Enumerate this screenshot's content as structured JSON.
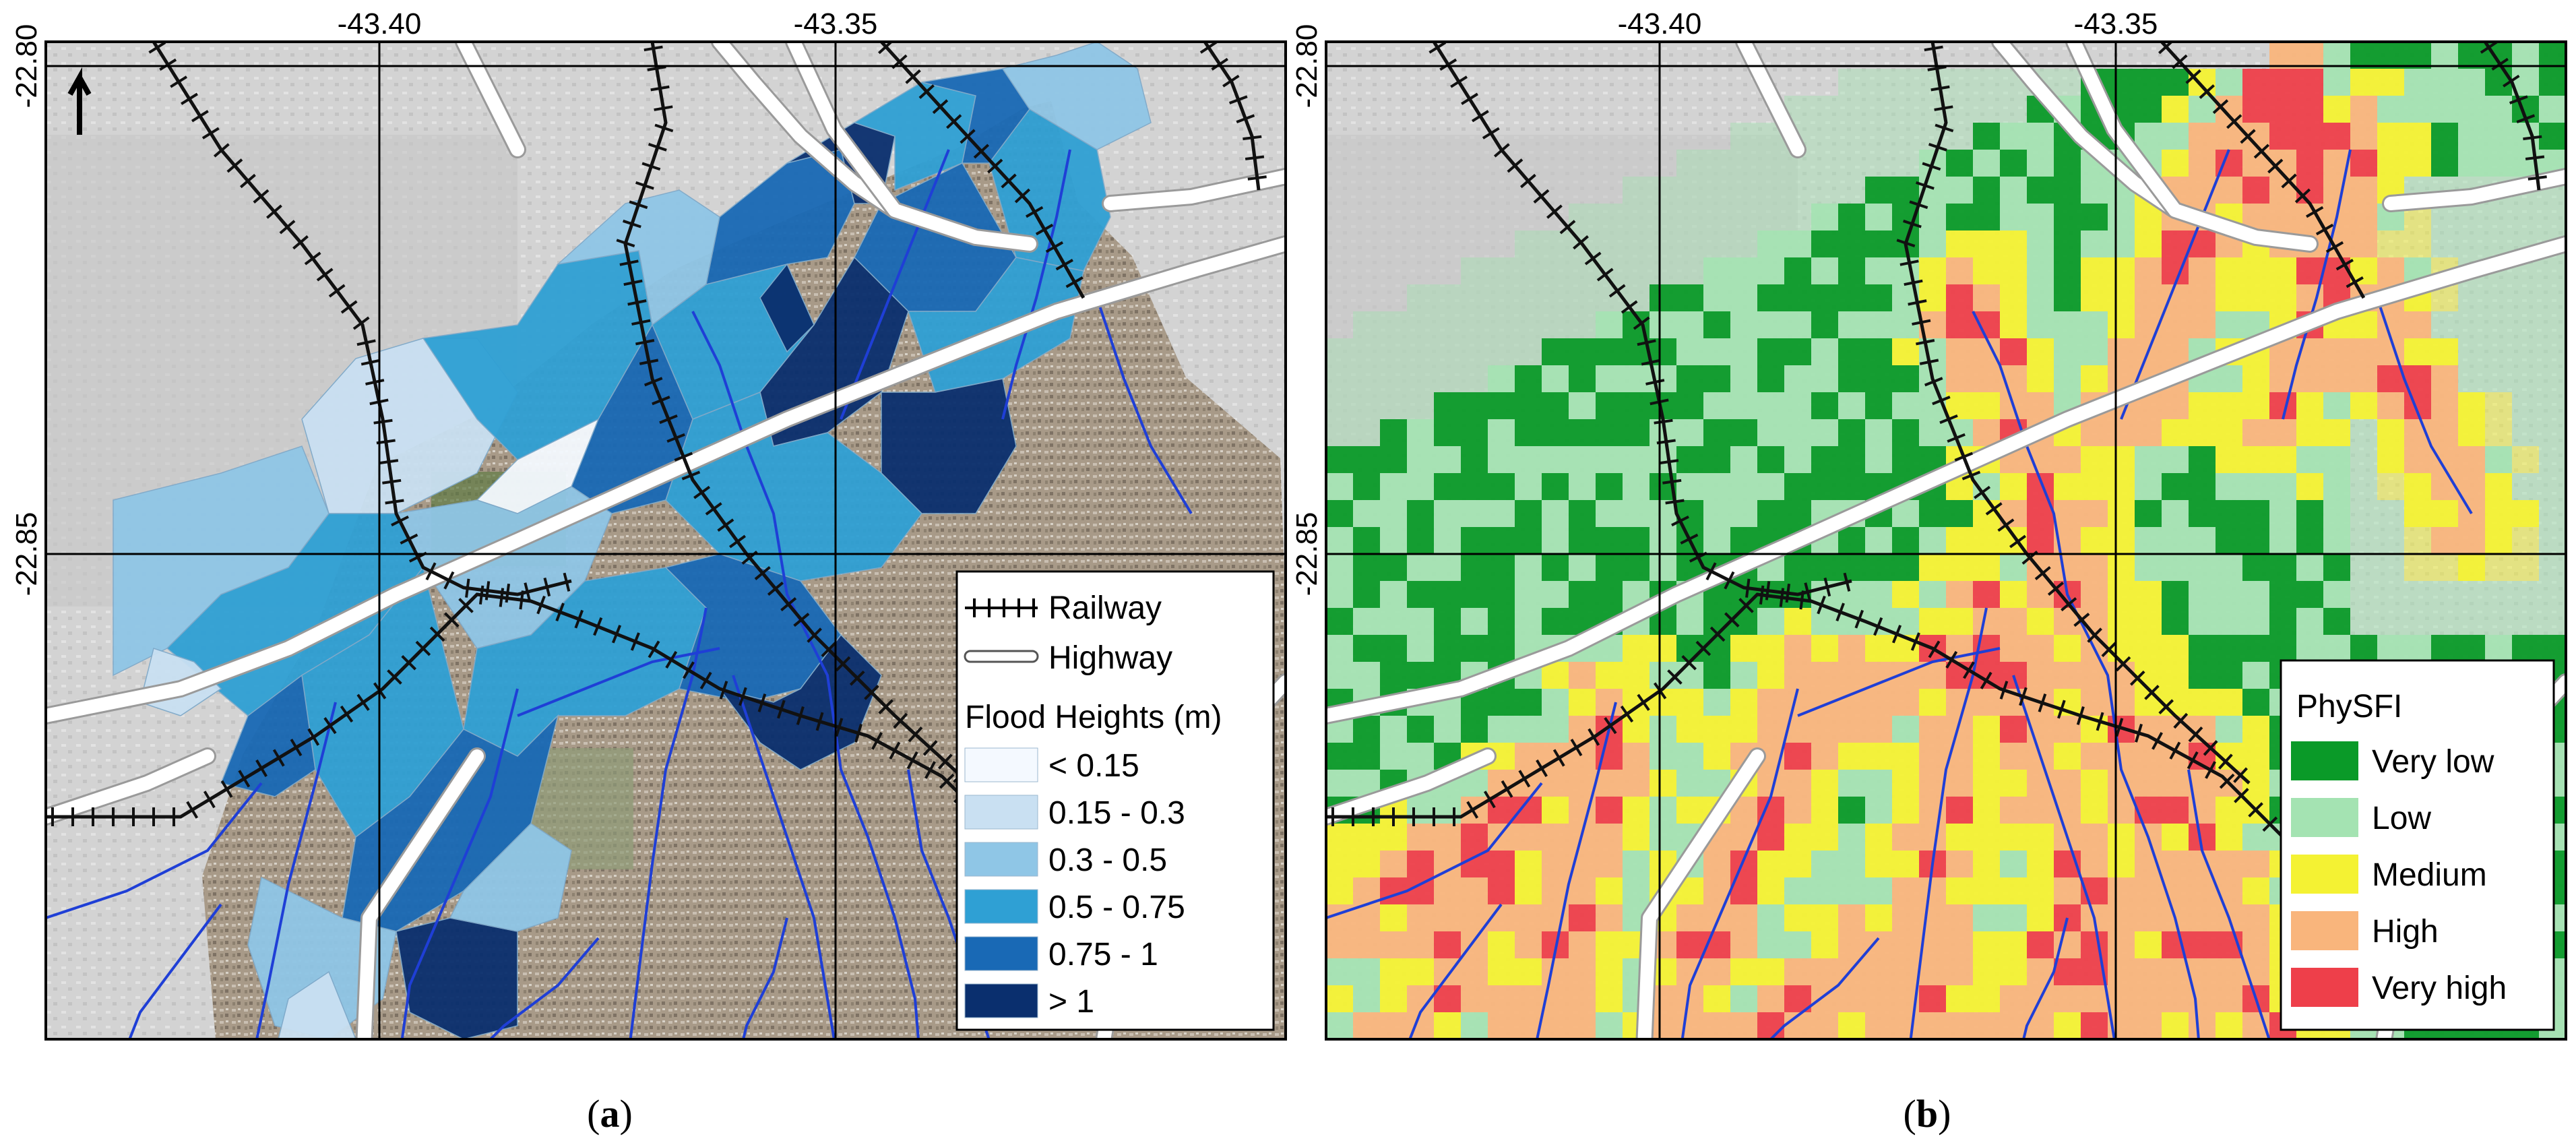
{
  "panels": [
    {
      "id": "a",
      "caption_letter": "a",
      "lon_labels": [
        "-43.40",
        "-43.35"
      ],
      "lat_labels": [
        "-22.80",
        "-22.85"
      ],
      "legend": {
        "features": [
          {
            "label": "Railway",
            "symbol": "railway"
          },
          {
            "label": "Highway",
            "symbol": "highway"
          }
        ],
        "title": "Flood Heights (m)",
        "classes": [
          {
            "label": "< 0.15",
            "color": "#f4f9ff"
          },
          {
            "label": "0.15 - 0.3",
            "color": "#c9e0f2"
          },
          {
            "label": "0.3 - 0.5",
            "color": "#8fc6e6"
          },
          {
            "label": "0.5 - 0.75",
            "color": "#2fa0d4"
          },
          {
            "label": "0.75 - 1",
            "color": "#1969b5"
          },
          {
            "label": "> 1",
            "color": "#0a2f6e"
          }
        ]
      }
    },
    {
      "id": "b",
      "caption_letter": "b",
      "lon_labels": [
        "-43.40",
        "-43.35"
      ],
      "lat_labels": [
        "-22.80",
        "-22.85"
      ],
      "legend": {
        "title": "PhySFI",
        "classes": [
          {
            "label": "Very low",
            "color": "#0a9a28"
          },
          {
            "label": "Low",
            "color": "#a4e3b2"
          },
          {
            "label": "Medium",
            "color": "#f4f233"
          },
          {
            "label": "High",
            "color": "#f9b57c"
          },
          {
            "label": "Very high",
            "color": "#ee3f4a"
          }
        ]
      }
    }
  ],
  "colors": {
    "river": "#1f3fd6",
    "railway": "#111111",
    "highway_fill": "#ffffff",
    "highway_casing": "#9a9a9a",
    "imagery_light": "#cfcfcf",
    "imagery_urban": "#9c8f7f",
    "grid": "#000000"
  },
  "north_arrow_icon": "north-arrow-icon"
}
